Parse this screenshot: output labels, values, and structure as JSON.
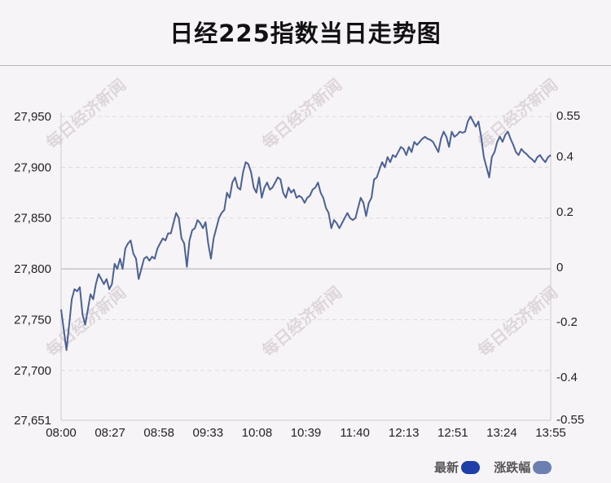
{
  "title": "日经225指数当日走势图",
  "watermark_text": "每日经济新闻",
  "legend": [
    {
      "label": "最新",
      "color": "#1f3fa8"
    },
    {
      "label": "涨跌幅",
      "color": "#6b7fb0"
    }
  ],
  "chart_data": {
    "type": "line",
    "title": "日经225指数当日走势图",
    "x_ticks": [
      "08:00",
      "08:27",
      "08:58",
      "09:33",
      "10:08",
      "10:39",
      "11:40",
      "12:13",
      "12:51",
      "13:24",
      "13:55"
    ],
    "y_left_ticks": [
      "27,950",
      "27,900",
      "27,850",
      "27,800",
      "27,750",
      "27,700",
      "27,651"
    ],
    "y_left_values": [
      27950,
      27900,
      27850,
      27800,
      27750,
      27700,
      27651
    ],
    "y_left_range": [
      27651,
      27950
    ],
    "y_right_ticks": [
      "0.55",
      "0.4",
      "0.2",
      "0",
      "-0.2",
      "-0.4",
      "-0.55"
    ],
    "baseline": 27800,
    "grid": "horizontal dashed",
    "line_color": "#4a6195",
    "series": [
      {
        "values": [
          27760,
          27740,
          27720,
          27745,
          27770,
          27780,
          27778,
          27782,
          27755,
          27745,
          27760,
          27775,
          27770,
          27785,
          27795,
          27790,
          27785,
          27790,
          27780,
          27785,
          27805,
          27800,
          27810,
          27800,
          27820,
          27825,
          27828,
          27815,
          27810,
          27790,
          27800,
          27810,
          27812,
          27808,
          27812,
          27810,
          27820,
          27825,
          27830,
          27828,
          27835,
          27835,
          27845,
          27855,
          27850,
          27830,
          27825,
          27802,
          27828,
          27838,
          27840,
          27848,
          27845,
          27840,
          27846,
          27825,
          27810,
          27830,
          27840,
          27850,
          27855,
          27858,
          27875,
          27870,
          27885,
          27890,
          27880,
          27878,
          27895,
          27905,
          27903,
          27895,
          27880,
          27875,
          27890,
          27870,
          27880,
          27885,
          27878,
          27880,
          27885,
          27890,
          27888,
          27875,
          27870,
          27880,
          27875,
          27878,
          27870,
          27872,
          27870,
          27865,
          27870,
          27872,
          27878,
          27880,
          27885,
          27875,
          27870,
          27860,
          27855,
          27840,
          27848,
          27845,
          27840,
          27845,
          27850,
          27855,
          27850,
          27848,
          27850,
          27860,
          27870,
          27865,
          27852,
          27865,
          27870,
          27888,
          27890,
          27898,
          27905,
          27900,
          27910,
          27905,
          27912,
          27910,
          27915,
          27920,
          27918,
          27912,
          27920,
          27915,
          27925,
          27922,
          27925,
          27928,
          27930,
          27928,
          27927,
          27925,
          27920,
          27915,
          27928,
          27935,
          27930,
          27920,
          27935,
          27930,
          27932,
          27935,
          27934,
          27935,
          27945,
          27950,
          27945,
          27940,
          27945,
          27930,
          27910,
          27900,
          27890,
          27910,
          27915,
          27925,
          27930,
          27925,
          27932,
          27935,
          27928,
          27922,
          27915,
          27912,
          27918,
          27915,
          27913,
          27910,
          27908,
          27905,
          27910,
          27912,
          27908,
          27905,
          27910,
          27912
        ]
      }
    ]
  }
}
